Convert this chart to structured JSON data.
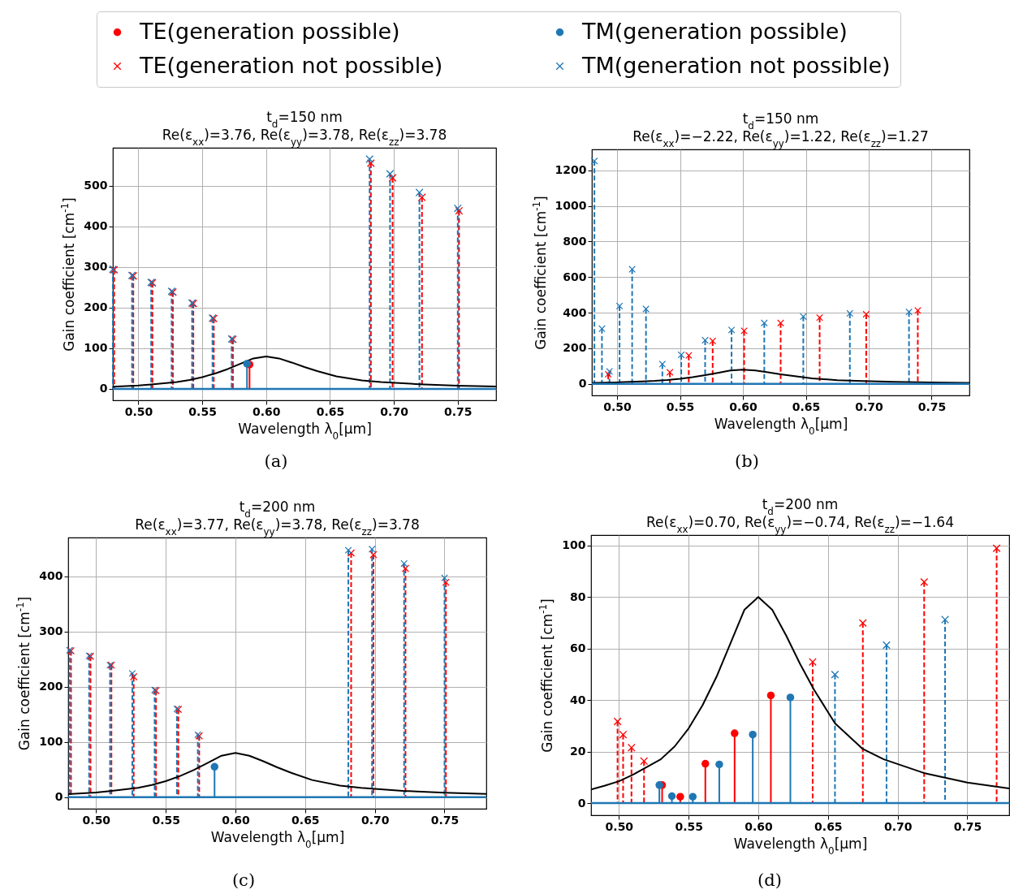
{
  "chart_data": [
    {
      "type": "lollipop",
      "title": "t$_{d}$=150 nm",
      "subtitle": "Re(ε$_{xx}$)=3.76, Re(ε$_{yy}$)=3.78, Re(ε$_{zz}$)=3.78",
      "xlabel": "Wavelength λ$_{0}$[μm]",
      "ylabel": "Gain coefficient [cm$^{-1}$]",
      "annotations": [
        "(a)"
      ],
      "xlim": [
        0.48,
        0.78
      ],
      "xticks": [
        {
          "value": 0.5,
          "label": "0.50"
        },
        {
          "value": 0.55,
          "label": "0.55"
        },
        {
          "value": 0.6,
          "label": "0.60"
        },
        {
          "value": 0.65,
          "label": "0.65"
        },
        {
          "value": 0.7,
          "label": "0.70"
        },
        {
          "value": 0.75,
          "label": "0.75"
        }
      ],
      "ylim": [
        -28,
        593
      ],
      "yticks": [
        0,
        100,
        200,
        300,
        400,
        500
      ],
      "grid": true,
      "legend": "top",
      "ref_lines": [
        {
          "axis": "y",
          "value": 0,
          "color": "#1f77b4"
        }
      ],
      "series": [
        {
          "name": "TE(generation possible)",
          "color": "#ff0000",
          "marker": "circle",
          "line_style": "solid",
          "x": [
            0.587
          ],
          "values": [
            60
          ]
        },
        {
          "name": "TM(generation possible)",
          "color": "#1f77b4",
          "marker": "circle",
          "line_style": "solid",
          "x": [
            0.585
          ],
          "values": [
            62
          ]
        },
        {
          "name": "TE(generation not possible)",
          "color": "#ff0000",
          "marker": "cross",
          "line_style": "dashed",
          "x": [
            0.481,
            0.496,
            0.511,
            0.527,
            0.543,
            0.559,
            0.574,
            0.682,
            0.699,
            0.722,
            0.751
          ],
          "values": [
            293,
            278,
            261,
            238,
            210,
            173,
            122,
            555,
            519,
            471,
            438
          ]
        },
        {
          "name": "TM(generation not possible)",
          "color": "#1f77b4",
          "marker": "cross",
          "line_style": "dashed",
          "x": [
            0.48,
            0.495,
            0.51,
            0.526,
            0.542,
            0.558,
            0.573,
            0.681,
            0.697,
            0.72,
            0.75
          ],
          "values": [
            294,
            279,
            262,
            240,
            211,
            174,
            123,
            565,
            529,
            483,
            444
          ]
        },
        {
          "type": "line",
          "color": "#000000",
          "x": [
            0.48,
            0.49,
            0.5,
            0.51,
            0.52,
            0.53,
            0.54,
            0.55,
            0.56,
            0.57,
            0.58,
            0.59,
            0.6,
            0.61,
            0.62,
            0.63,
            0.64,
            0.655,
            0.675,
            0.69,
            0.72,
            0.75,
            0.78
          ],
          "values": [
            5.3,
            6.8,
            8.5,
            11,
            14,
            17,
            22,
            29,
            38,
            49,
            62,
            75,
            80,
            75,
            65,
            54,
            44,
            31,
            21,
            17,
            11.5,
            8,
            5.7
          ]
        }
      ]
    },
    {
      "type": "lollipop",
      "title": "t$_{d}$=150 nm",
      "subtitle": "Re(ε$_{xx}$)=−2.22, Re(ε$_{yy}$)=1.22, Re(ε$_{zz}$)=1.27",
      "xlabel": "Wavelength λ$_{0}$[μm]",
      "ylabel": "Gain coefficient [cm$^{-1}$]",
      "annotations": [
        "(b)"
      ],
      "xlim": [
        0.48,
        0.78
      ],
      "xticks": [
        {
          "value": 0.5,
          "label": "0.50"
        },
        {
          "value": 0.55,
          "label": "0.55"
        },
        {
          "value": 0.6,
          "label": "0.60"
        },
        {
          "value": 0.65,
          "label": "0.65"
        },
        {
          "value": 0.7,
          "label": "0.70"
        },
        {
          "value": 0.75,
          "label": "0.75"
        }
      ],
      "ylim": [
        -65,
        1317
      ],
      "yticks": [
        0,
        200,
        400,
        600,
        800,
        1000,
        1200
      ],
      "grid": true,
      "ref_lines": [
        {
          "axis": "y",
          "value": 0,
          "color": "#1f77b4"
        }
      ],
      "series": [
        {
          "color": "#ff0000",
          "marker": "cross",
          "line_style": "dashed",
          "x": [
            0.493,
            0.542,
            0.557,
            0.576,
            0.601,
            0.63,
            0.661,
            0.698,
            0.739
          ],
          "values": [
            54,
            65,
            160,
            241,
            298,
            342,
            372,
            391,
            412
          ]
        },
        {
          "color": "#1f77b4",
          "marker": "cross",
          "line_style": "dashed",
          "x": [
            0.482,
            0.488,
            0.494,
            0.502,
            0.512,
            0.523,
            0.536,
            0.551,
            0.57,
            0.591,
            0.617,
            0.648,
            0.685,
            0.732
          ],
          "values": [
            1252,
            310,
            70,
            437,
            644,
            421,
            111,
            163,
            245,
            303,
            342,
            378,
            396,
            404
          ]
        },
        {
          "type": "line",
          "color": "#000000",
          "x": [
            0.48,
            0.49,
            0.5,
            0.51,
            0.52,
            0.53,
            0.54,
            0.55,
            0.56,
            0.57,
            0.58,
            0.59,
            0.6,
            0.61,
            0.62,
            0.63,
            0.64,
            0.655,
            0.675,
            0.69,
            0.72,
            0.75,
            0.78
          ],
          "values": [
            5.3,
            6.8,
            8.5,
            11,
            14,
            17,
            22,
            29,
            38,
            49,
            62,
            75,
            80,
            75,
            65,
            54,
            44,
            31,
            21,
            17,
            11.5,
            8,
            5.7
          ]
        }
      ]
    },
    {
      "type": "lollipop",
      "title": "t$_{d}$=200 nm",
      "subtitle": "Re(ε$_{xx}$)=3.77, Re(ε$_{yy}$)=3.78, Re(ε$_{zz}$)=3.78",
      "xlabel": "Wavelength λ$_{0}$[μm]",
      "ylabel": "Gain coefficient [cm$^{-1}$]",
      "annotations": [
        "(c)"
      ],
      "xlim": [
        0.48,
        0.78
      ],
      "xticks": [
        {
          "value": 0.5,
          "label": "0.50"
        },
        {
          "value": 0.55,
          "label": "0.55"
        },
        {
          "value": 0.6,
          "label": "0.60"
        },
        {
          "value": 0.65,
          "label": "0.65"
        },
        {
          "value": 0.7,
          "label": "0.70"
        },
        {
          "value": 0.75,
          "label": "0.75"
        }
      ],
      "ylim": [
        -21,
        470
      ],
      "yticks": [
        0,
        100,
        200,
        300,
        400
      ],
      "grid": true,
      "ref_lines": [
        {
          "axis": "y",
          "value": 0,
          "color": "#1f77b4"
        }
      ],
      "series": [
        {
          "color": "#1f77b4",
          "marker": "circle",
          "line_style": "solid",
          "x": [
            0.585
          ],
          "values": [
            55
          ]
        },
        {
          "color": "#ff0000",
          "marker": "cross",
          "line_style": "dashed",
          "x": [
            0.482,
            0.496,
            0.511,
            0.527,
            0.543,
            0.559,
            0.574,
            0.683,
            0.699,
            0.722,
            0.751
          ],
          "values": [
            265,
            255,
            239,
            218,
            193,
            159,
            111,
            442,
            439,
            414,
            389
          ]
        },
        {
          "color": "#1f77b4",
          "marker": "cross",
          "line_style": "dashed",
          "x": [
            0.481,
            0.495,
            0.51,
            0.526,
            0.542,
            0.558,
            0.573,
            0.681,
            0.698,
            0.721,
            0.75
          ],
          "values": [
            266,
            256,
            239,
            224,
            194,
            160,
            113,
            447,
            449,
            423,
            397
          ]
        },
        {
          "type": "line",
          "color": "#000000",
          "x": [
            0.48,
            0.49,
            0.5,
            0.51,
            0.52,
            0.53,
            0.54,
            0.55,
            0.56,
            0.57,
            0.58,
            0.59,
            0.6,
            0.61,
            0.62,
            0.63,
            0.64,
            0.655,
            0.675,
            0.69,
            0.72,
            0.75,
            0.78
          ],
          "values": [
            5.3,
            6.8,
            8.5,
            11,
            14,
            17,
            22,
            29,
            38,
            49,
            62,
            75,
            80,
            75,
            65,
            54,
            44,
            31,
            21,
            17,
            11.5,
            8,
            5.7
          ]
        }
      ]
    },
    {
      "type": "lollipop",
      "title": "t$_{d}$=200 nm",
      "subtitle": "Re(ε$_{xx}$)=0.70, Re(ε$_{yy}$)=−0.74, Re(ε$_{zz}$)=−1.64",
      "xlabel": "Wavelength λ$_{0}$[μm]",
      "ylabel": "Gain coefficient [cm$^{-1}$]",
      "annotations": [
        "(d)"
      ],
      "xlim": [
        0.48,
        0.78
      ],
      "xticks": [
        {
          "value": 0.5,
          "label": "0.50"
        },
        {
          "value": 0.55,
          "label": "0.55"
        },
        {
          "value": 0.6,
          "label": "0.60"
        },
        {
          "value": 0.65,
          "label": "0.65"
        },
        {
          "value": 0.7,
          "label": "0.70"
        },
        {
          "value": 0.75,
          "label": "0.75"
        }
      ],
      "ylim": [
        -4.7,
        104
      ],
      "yticks": [
        0,
        20,
        40,
        60,
        80,
        100
      ],
      "grid": true,
      "ref_lines": [
        {
          "axis": "y",
          "value": 0,
          "color": "#1f77b4"
        }
      ],
      "series": [
        {
          "color": "#ff0000",
          "marker": "circle",
          "line_style": "solid",
          "x": [
            0.531,
            0.544,
            0.562,
            0.583,
            0.609
          ],
          "values": [
            7,
            2.5,
            15.3,
            27.1,
            41.8
          ]
        },
        {
          "color": "#1f77b4",
          "marker": "circle",
          "line_style": "solid",
          "x": [
            0.529,
            0.538,
            0.553,
            0.572,
            0.596,
            0.623
          ],
          "values": [
            7,
            2.7,
            2.5,
            15,
            26.6,
            41
          ]
        },
        {
          "color": "#ff0000",
          "marker": "cross",
          "line_style": "dashed",
          "x": [
            0.499,
            0.503,
            0.509,
            0.518,
            0.639,
            0.675,
            0.719,
            0.771
          ],
          "values": [
            31.7,
            26.6,
            21.5,
            16.3,
            54.8,
            69.9,
            85.8,
            98.9
          ]
        },
        {
          "color": "#1f77b4",
          "marker": "cross",
          "line_style": "dashed",
          "x": [
            0.655,
            0.692,
            0.734
          ],
          "values": [
            49.9,
            61.3,
            71.2
          ]
        },
        {
          "type": "line",
          "color": "#000000",
          "x": [
            0.48,
            0.49,
            0.5,
            0.51,
            0.52,
            0.53,
            0.54,
            0.55,
            0.56,
            0.57,
            0.58,
            0.59,
            0.6,
            0.61,
            0.62,
            0.63,
            0.64,
            0.655,
            0.675,
            0.69,
            0.72,
            0.75,
            0.78
          ],
          "values": [
            5.3,
            6.8,
            8.5,
            11,
            14,
            17,
            22,
            29,
            38,
            49,
            62,
            75,
            80,
            75,
            65,
            54,
            44,
            31,
            21,
            17,
            11.5,
            8,
            5.7
          ]
        }
      ]
    }
  ]
}
